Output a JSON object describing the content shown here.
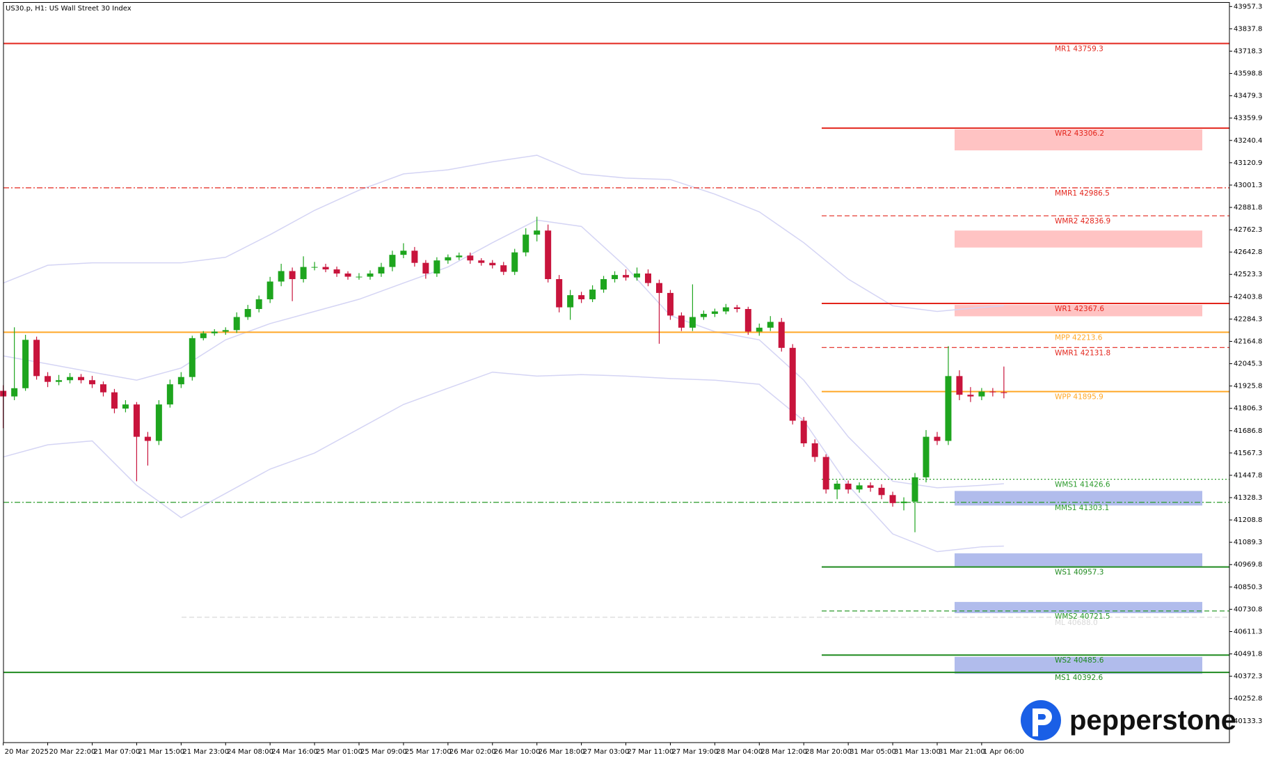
{
  "chart_data": {
    "type": "candlestick",
    "title": "US30.p, H1:  US Wall Street 30 Index",
    "logo": "pepperstone",
    "categories": [
      "20 Mar 2025",
      null,
      null,
      null,
      "20 Mar 22:00",
      null,
      null,
      null,
      "21 Mar 07:00",
      null,
      null,
      null,
      "21 Mar 15:00",
      null,
      null,
      null,
      "21 Mar 23:00",
      null,
      null,
      null,
      "24 Mar 08:00",
      null,
      null,
      null,
      "24 Mar 16:00",
      null,
      null,
      null,
      "25 Mar 01:00",
      null,
      null,
      null,
      "25 Mar 09:00",
      null,
      null,
      null,
      "25 Mar 17:00",
      null,
      null,
      null,
      "26 Mar 02:00",
      null,
      null,
      null,
      "26 Mar 10:00",
      null,
      null,
      null,
      "26 Mar 18:00",
      null,
      null,
      null,
      "27 Mar 03:00",
      null,
      null,
      null,
      "27 Mar 11:00",
      null,
      null,
      null,
      "27 Mar 19:00",
      null,
      null,
      null,
      "28 Mar 04:00",
      null,
      null,
      null,
      "28 Mar 12:00",
      null,
      null,
      null,
      "28 Mar 20:00",
      null,
      null,
      null,
      "31 Mar 05:00",
      null,
      null,
      null,
      "31 Mar 13:00",
      null,
      null,
      null,
      "31 Mar 21:00",
      null,
      null,
      null,
      "1 Apr 06:00",
      null,
      null
    ],
    "open": [
      41900,
      41870,
      41914,
      42173,
      41979,
      41948,
      41957,
      41974,
      41957,
      41935,
      41892,
      41805,
      41827,
      41654,
      41632,
      41827,
      41935,
      41974,
      42182,
      42208,
      42217,
      42225,
      42295,
      42338,
      42390,
      42485,
      42541,
      42498,
      42563,
      42563,
      42550,
      42528,
      42511,
      42511,
      42528,
      42563,
      42628,
      42650,
      42585,
      42528,
      42598,
      42615,
      42624,
      42598,
      42585,
      42572,
      42537,
      42641,
      42736,
      42758,
      42498,
      42347,
      42412,
      42390,
      42442,
      42498,
      42520,
      42507,
      42528,
      42477,
      42424,
      42303,
      42238,
      42295,
      42312,
      42325,
      42347,
      42338,
      42217,
      42238,
      42269,
      42130,
      41740,
      41619,
      41546,
      41372,
      41403,
      41372,
      41394,
      41381,
      41342,
      41299,
      41307,
      41437,
      41654,
      41632,
      41979,
      41879,
      41870,
      41896,
      41892
    ],
    "high": [
      41930,
      42240,
      42200,
      42190,
      42000,
      41985,
      41995,
      41990,
      41980,
      41950,
      41910,
      41850,
      41840,
      41680,
      41850,
      41960,
      42000,
      42195,
      42220,
      42230,
      42240,
      42320,
      42360,
      42410,
      42510,
      42580,
      42560,
      42620,
      42590,
      42580,
      42565,
      42540,
      42530,
      42545,
      42585,
      42650,
      42690,
      42670,
      42600,
      42615,
      42630,
      42640,
      42640,
      42610,
      42600,
      42590,
      42660,
      42770,
      42832,
      42790,
      42520,
      42440,
      42430,
      42465,
      42515,
      42540,
      42550,
      42560,
      42550,
      42495,
      42440,
      42320,
      42470,
      42330,
      42340,
      42365,
      42360,
      42350,
      42260,
      42300,
      42290,
      42150,
      41760,
      41640,
      41560,
      41420,
      41420,
      41410,
      41410,
      41400,
      41360,
      41330,
      41460,
      41690,
      41680,
      42139,
      42010,
      41920,
      41915,
      41915,
      42030
    ],
    "low": [
      41700,
      41850,
      41900,
      41960,
      41920,
      41930,
      41940,
      41940,
      41915,
      41870,
      41780,
      41785,
      41416,
      41500,
      41610,
      41810,
      41915,
      41955,
      42170,
      42195,
      42200,
      42210,
      42280,
      42320,
      42370,
      42460,
      42380,
      42480,
      42545,
      42535,
      42510,
      42495,
      42495,
      42495,
      42510,
      42540,
      42610,
      42565,
      42500,
      42510,
      42580,
      42600,
      42580,
      42570,
      42555,
      42520,
      42520,
      42620,
      42700,
      42480,
      42320,
      42280,
      42370,
      42375,
      42425,
      42480,
      42490,
      42490,
      42460,
      42152,
      42280,
      42220,
      42220,
      42280,
      42295,
      42310,
      42320,
      42200,
      42195,
      42220,
      42110,
      41720,
      41600,
      41520,
      41350,
      41320,
      41350,
      41355,
      41360,
      41320,
      41280,
      41260,
      41143,
      41410,
      41610,
      41610,
      41850,
      41840,
      41850,
      41870,
      41860
    ],
    "close": [
      41870,
      41914,
      42173,
      41979,
      41948,
      41957,
      41974,
      41957,
      41935,
      41892,
      41805,
      41827,
      41654,
      41632,
      41827,
      41935,
      41974,
      42182,
      42208,
      42217,
      42225,
      42295,
      42338,
      42390,
      42485,
      42541,
      42498,
      42563,
      42563,
      42550,
      42528,
      42511,
      42511,
      42528,
      42563,
      42628,
      42650,
      42585,
      42528,
      42598,
      42615,
      42624,
      42598,
      42585,
      42572,
      42537,
      42641,
      42736,
      42758,
      42498,
      42347,
      42412,
      42390,
      42442,
      42498,
      42520,
      42507,
      42528,
      42477,
      42424,
      42303,
      42238,
      42295,
      42312,
      42325,
      42347,
      42338,
      42217,
      42238,
      42269,
      42130,
      41740,
      41619,
      41546,
      41372,
      41403,
      41372,
      41394,
      41381,
      41342,
      41299,
      41307,
      41437,
      41654,
      41632,
      41979,
      41879,
      41870,
      41896,
      41892,
      41888
    ],
    "up_color": "#1ea51e",
    "down_color": "#c8143c",
    "bands": [
      {
        "color": "#d4d4f4",
        "x": [
          0,
          4,
          8,
          12,
          16,
          20,
          24,
          28,
          32,
          36,
          40,
          44,
          48,
          52,
          56,
          60,
          64,
          68,
          72,
          76,
          80,
          84,
          88,
          90
        ],
        "values": [
          42477,
          42572,
          42585,
          42585,
          42585,
          42615,
          42736,
          42866,
          42974,
          43061,
          43083,
          43126,
          43161,
          43061,
          43039,
          43031,
          42953,
          42858,
          42693,
          42498,
          42355,
          42325,
          42347,
          42355
        ]
      },
      {
        "color": "#d4d4f4",
        "x": [
          0,
          4,
          8,
          12,
          16,
          20,
          24,
          28,
          32,
          36,
          40,
          44,
          48,
          52,
          56,
          60,
          64,
          68,
          72,
          76,
          80,
          84,
          88,
          90
        ],
        "values": [
          42087,
          42044,
          42000,
          41957,
          42022,
          42173,
          42260,
          42325,
          42390,
          42477,
          42563,
          42693,
          42814,
          42780,
          42563,
          42303,
          42217,
          42173,
          41957,
          41654,
          41416,
          41381,
          41394,
          41403
        ]
      },
      {
        "color": "#d4d4f4",
        "x": [
          0,
          4,
          8,
          12,
          16,
          20,
          24,
          28,
          32,
          36,
          40,
          44,
          48,
          52,
          56,
          60,
          64,
          68,
          72,
          76,
          80,
          84,
          88,
          90
        ],
        "values": [
          41546,
          41611,
          41632,
          41394,
          41221,
          41351,
          41481,
          41567,
          41697,
          41827,
          41914,
          42000,
          41979,
          41987,
          41979,
          41966,
          41957,
          41935,
          41740,
          41394,
          41134,
          41039,
          41065,
          41069
        ]
      }
    ],
    "levels": [
      {
        "label": "MR1 43759.3",
        "value": 43759.3,
        "color": "#e3241b",
        "style": "solid"
      },
      {
        "label": "WR2 43306.2",
        "value": 43306.2,
        "color": "#e3241b",
        "style": "solid"
      },
      {
        "label": "MMR1 42986.5",
        "value": 42986.5,
        "color": "#e3241b",
        "style": "dashdot"
      },
      {
        "label": "WMR2 42836.9",
        "value": 42836.9,
        "color": "#e3241b",
        "style": "dashed"
      },
      {
        "label": "WR1 42367.6",
        "value": 42367.6,
        "color": "#e3241b",
        "style": "solid"
      },
      {
        "label": "MPP 42213.6",
        "value": 42213.6,
        "color": "#ffa726",
        "style": "solid"
      },
      {
        "label": "WMR1 42131.8",
        "value": 42131.8,
        "color": "#e3241b",
        "style": "dashed"
      },
      {
        "label": "WPP 41895.9",
        "value": 41895.9,
        "color": "#ffa726",
        "style": "solid"
      },
      {
        "label": "WMS1 41426.6",
        "value": 41426.6,
        "color": "#2a9a2a",
        "style": "dotted"
      },
      {
        "label": "MMS1 41303.1",
        "value": 41303.1,
        "color": "#2a9a2a",
        "style": "dashdot"
      },
      {
        "label": "WS1 40957.3",
        "value": 40957.3,
        "color": "#1f8a1f",
        "style": "solid"
      },
      {
        "label": "ML 40688.0",
        "value": 40688.0,
        "color": "#d8d8d8",
        "style": "dashed"
      },
      {
        "label": "WMS2 40721.5",
        "value": 40721.5,
        "color": "#2a9a2a",
        "style": "dashed"
      },
      {
        "label": "WS2 40485.6",
        "value": 40485.6,
        "color": "#1f8a1f",
        "style": "solid"
      },
      {
        "label": "MS1 40392.6",
        "value": 40392.6,
        "color": "#1f8a1f",
        "style": "solid"
      }
    ],
    "zones": [
      {
        "top": 43299,
        "bottom": 43187,
        "color": "#ffbdbd"
      },
      {
        "top": 42758,
        "bottom": 42667,
        "color": "#ffbdbd"
      },
      {
        "top": 42360,
        "bottom": 42299,
        "color": "#ffbdbd"
      },
      {
        "top": 41364,
        "bottom": 41286,
        "color": "#a9b5ea"
      },
      {
        "top": 41030,
        "bottom": 40961,
        "color": "#a9b5ea"
      },
      {
        "top": 40770,
        "bottom": 40710,
        "color": "#a9b5ea"
      },
      {
        "top": 40476,
        "bottom": 40385,
        "color": "#a9b5ea"
      }
    ],
    "ylim": [
      40017,
      43979
    ],
    "yticks": [
      43957.3,
      43837.8,
      43718.3,
      43598.8,
      43479.3,
      43359.9,
      43240.4,
      43120.9,
      43001.3,
      42881.8,
      42762.3,
      42642.8,
      42523.3,
      42403.8,
      42284.3,
      42164.8,
      42045.3,
      41925.8,
      41806.3,
      41686.8,
      41567.3,
      41447.8,
      41328.3,
      41208.8,
      41089.3,
      40969.8,
      40850.3,
      40730.8,
      40611.3,
      40491.8,
      40372.3,
      40252.8,
      40133.3
    ]
  }
}
